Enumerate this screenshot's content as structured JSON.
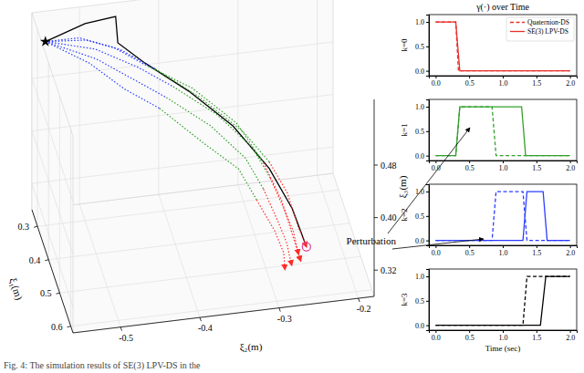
{
  "chart_data": [
    {
      "type": "line3d",
      "xlabel": "ξ₁(m)",
      "ylabel": "ξ₂(m)",
      "zlabel": "ξ₃(m)",
      "xlim": [
        0.25,
        0.62
      ],
      "ylim": [
        -0.56,
        -0.18
      ],
      "zlim": [
        0.28,
        0.58
      ],
      "xticks": [
        0.3,
        0.4,
        0.5,
        0.6
      ],
      "yticks": [
        -0.5,
        -0.4,
        -0.3,
        -0.2
      ],
      "zticks": [
        0.32,
        {
          "value": 0.4,
          "label": "0.40"
        },
        0.48
      ],
      "grid": true,
      "series": [
        {
          "color": "#000000",
          "line_style": "solid",
          "x": [
            0.3,
            0.3,
            0.29,
            0.31,
            0.34,
            0.38,
            0.42,
            0.46,
            0.49,
            0.51
          ],
          "y": [
            -0.55,
            -0.5,
            -0.46,
            -0.46,
            -0.43,
            -0.38,
            -0.33,
            -0.29,
            -0.265,
            -0.25
          ],
          "z": [
            0.56,
            0.58,
            0.58,
            0.55,
            0.53,
            0.5,
            0.46,
            0.41,
            0.36,
            0.31
          ]
        },
        {
          "color": "#2b3cff",
          "line_style": "dotted",
          "x": [
            0.3,
            0.32,
            0.35,
            0.38
          ],
          "y": [
            -0.55,
            -0.49,
            -0.44,
            -0.4
          ],
          "z": [
            0.56,
            0.55,
            0.53,
            0.51
          ]
        },
        {
          "color": "#33a02c",
          "line_style": "dotted",
          "x": [
            0.38,
            0.42,
            0.45,
            0.47
          ],
          "y": [
            -0.4,
            -0.35,
            -0.31,
            -0.29
          ],
          "z": [
            0.51,
            0.48,
            0.44,
            0.4
          ]
        },
        {
          "color": "#ff2a2a",
          "line_style": "dotted",
          "marker": "arrow",
          "x": [
            0.47,
            0.49,
            0.5,
            0.51
          ],
          "y": [
            -0.29,
            -0.275,
            -0.265,
            -0.26
          ],
          "z": [
            0.4,
            0.36,
            0.33,
            0.3
          ]
        },
        {
          "color": "#2b3cff",
          "line_style": "dotted",
          "x": [
            0.3,
            0.33,
            0.36,
            0.39
          ],
          "y": [
            -0.55,
            -0.49,
            -0.45,
            -0.41
          ],
          "z": [
            0.56,
            0.54,
            0.52,
            0.5
          ]
        },
        {
          "color": "#33a02c",
          "line_style": "dotted",
          "x": [
            0.39,
            0.43,
            0.46,
            0.48
          ],
          "y": [
            -0.41,
            -0.36,
            -0.32,
            -0.3
          ],
          "z": [
            0.5,
            0.47,
            0.43,
            0.39
          ]
        },
        {
          "color": "#ff2a2a",
          "line_style": "dotted",
          "marker": "arrow",
          "x": [
            0.48,
            0.5,
            0.51,
            0.52
          ],
          "y": [
            -0.3,
            -0.285,
            -0.275,
            -0.27
          ],
          "z": [
            0.39,
            0.35,
            0.32,
            0.29
          ]
        },
        {
          "color": "#2b3cff",
          "line_style": "dotted",
          "x": [
            0.3,
            0.31,
            0.33,
            0.36
          ],
          "y": [
            -0.55,
            -0.5,
            -0.46,
            -0.42
          ],
          "z": [
            0.56,
            0.56,
            0.55,
            0.53
          ]
        },
        {
          "color": "#33a02c",
          "line_style": "dotted",
          "x": [
            0.36,
            0.4,
            0.44,
            0.46
          ],
          "y": [
            -0.42,
            -0.37,
            -0.32,
            -0.29
          ],
          "z": [
            0.53,
            0.5,
            0.46,
            0.42
          ]
        },
        {
          "color": "#ff2a2a",
          "line_style": "dotted",
          "marker": "arrow",
          "x": [
            0.46,
            0.48,
            0.5,
            0.51
          ],
          "y": [
            -0.29,
            -0.27,
            -0.26,
            -0.25
          ],
          "z": [
            0.42,
            0.38,
            0.34,
            0.31
          ]
        },
        {
          "color": "#2b3cff",
          "line_style": "dotted",
          "x": [
            0.3,
            0.34,
            0.37,
            0.4
          ],
          "y": [
            -0.55,
            -0.5,
            -0.46,
            -0.42
          ],
          "z": [
            0.56,
            0.54,
            0.51,
            0.49
          ]
        },
        {
          "color": "#33a02c",
          "line_style": "dotted",
          "x": [
            0.4,
            0.44,
            0.47,
            0.49
          ],
          "y": [
            -0.42,
            -0.37,
            -0.33,
            -0.31
          ],
          "z": [
            0.49,
            0.45,
            0.42,
            0.38
          ]
        },
        {
          "color": "#ff2a2a",
          "line_style": "dotted",
          "marker": "arrow",
          "x": [
            0.49,
            0.51,
            0.52,
            0.53
          ],
          "y": [
            -0.31,
            -0.29,
            -0.28,
            -0.28
          ],
          "z": [
            0.38,
            0.34,
            0.31,
            0.29
          ]
        },
        {
          "color": "#2b3cff",
          "line_style": "dotted",
          "x": [
            0.3,
            0.32,
            0.34,
            0.37
          ],
          "y": [
            -0.55,
            -0.51,
            -0.47,
            -0.43
          ],
          "z": [
            0.56,
            0.57,
            0.56,
            0.54
          ]
        },
        {
          "color": "#33a02c",
          "line_style": "dotted",
          "x": [
            0.37,
            0.41,
            0.45,
            0.48
          ],
          "y": [
            -0.43,
            -0.38,
            -0.33,
            -0.3
          ],
          "z": [
            0.54,
            0.52,
            0.48,
            0.43
          ]
        },
        {
          "color": "#ff2a2a",
          "line_style": "dotted",
          "marker": "arrow",
          "x": [
            0.48,
            0.5,
            0.52,
            0.53
          ],
          "y": [
            -0.3,
            -0.28,
            -0.27,
            -0.26
          ],
          "z": [
            0.43,
            0.38,
            0.34,
            0.3
          ]
        },
        {
          "color": "#000000",
          "marker": "star",
          "x": [
            0.3
          ],
          "y": [
            -0.55
          ],
          "z": [
            0.56
          ]
        },
        {
          "color": "#e0409f",
          "marker": "circle",
          "x": [
            0.51
          ],
          "y": [
            -0.25
          ],
          "z": [
            0.31
          ]
        }
      ]
    },
    {
      "type": "line",
      "title": "γ(·) over Time",
      "ylabel": "k=0",
      "legend": "upper right",
      "xlim": [
        -0.1,
        2.1
      ],
      "ylim": [
        -0.1,
        1.15
      ],
      "xticks": [
        {
          "value": 0,
          "label": "0.0"
        },
        {
          "value": 0.5,
          "label": "0.5"
        },
        {
          "value": 1,
          "label": "1.0"
        },
        {
          "value": 1.5,
          "label": "1.5"
        },
        {
          "value": 2,
          "label": "2.0"
        }
      ],
      "yticks": [
        {
          "value": 0,
          "label": "0.0"
        },
        {
          "value": 0.5,
          "label": "0.5"
        },
        {
          "value": 1,
          "label": "1.0"
        }
      ],
      "series": [
        {
          "name": "Quaternion-DS",
          "color": "#e8302a",
          "line_style": "dashed",
          "x": [
            0,
            0.3,
            0.34,
            2.0
          ],
          "values": [
            1,
            1,
            0,
            0
          ]
        },
        {
          "name": "SE(3) LPV-DS",
          "color": "#e8302a",
          "line_style": "solid",
          "x": [
            0,
            0.3,
            0.36,
            2.0
          ],
          "values": [
            1,
            1,
            0,
            0
          ]
        }
      ]
    },
    {
      "type": "line",
      "ylabel": "k=1",
      "annotations": [
        "Perturbation"
      ],
      "xlim": [
        -0.1,
        2.1
      ],
      "ylim": [
        -0.1,
        1.15
      ],
      "xticks": [
        {
          "value": 0,
          "label": "0.0"
        },
        {
          "value": 0.5,
          "label": "0.5"
        },
        {
          "value": 1,
          "label": "1.0"
        },
        {
          "value": 1.5,
          "label": "1.5"
        },
        {
          "value": 2,
          "label": "2.0"
        }
      ],
      "yticks": [
        {
          "value": 0,
          "label": "0.0"
        },
        {
          "value": 0.5,
          "label": "0.5"
        },
        {
          "value": 1,
          "label": "1.0"
        }
      ],
      "series": [
        {
          "color": "#33a02c",
          "line_style": "dashed",
          "x": [
            0,
            0.3,
            0.36,
            0.84,
            0.9,
            2.0
          ],
          "values": [
            0,
            0,
            1,
            1,
            0,
            0
          ]
        },
        {
          "color": "#33a02c",
          "line_style": "solid",
          "x": [
            0,
            0.3,
            0.36,
            1.28,
            1.34,
            2.0
          ],
          "values": [
            0,
            0,
            1,
            1,
            0,
            0
          ]
        }
      ]
    },
    {
      "type": "line",
      "ylabel": "k=2",
      "xlim": [
        -0.1,
        2.1
      ],
      "ylim": [
        -0.1,
        1.15
      ],
      "xticks": [
        {
          "value": 0,
          "label": "0.0"
        },
        {
          "value": 0.5,
          "label": "0.5"
        },
        {
          "value": 1,
          "label": "1.0"
        },
        {
          "value": 1.5,
          "label": "1.5"
        },
        {
          "value": 2,
          "label": "2.0"
        }
      ],
      "yticks": [
        {
          "value": 0,
          "label": "0.0"
        },
        {
          "value": 0.5,
          "label": "0.5"
        },
        {
          "value": 1,
          "label": "1.0"
        }
      ],
      "series": [
        {
          "color": "#2b3cff",
          "line_style": "dashed",
          "x": [
            0,
            0.84,
            0.9,
            1.3,
            1.36,
            2.0
          ],
          "values": [
            0,
            0,
            1,
            1,
            0,
            0
          ]
        },
        {
          "color": "#2b3cff",
          "line_style": "solid",
          "x": [
            0,
            1.3,
            1.36,
            1.6,
            1.66,
            2.0
          ],
          "values": [
            0,
            0,
            1,
            1,
            0,
            0
          ]
        }
      ]
    },
    {
      "type": "line",
      "ylabel": "k=3",
      "xlabel": "Time (sec)",
      "xlim": [
        -0.1,
        2.1
      ],
      "ylim": [
        -0.1,
        1.15
      ],
      "xticks": [
        {
          "value": 0,
          "label": "0.0"
        },
        {
          "value": 0.5,
          "label": "0.5"
        },
        {
          "value": 1,
          "label": "1.0"
        },
        {
          "value": 1.5,
          "label": "1.5"
        },
        {
          "value": 2,
          "label": "2.0"
        }
      ],
      "yticks": [
        {
          "value": 0,
          "label": "0.0"
        },
        {
          "value": 0.5,
          "label": "0.5"
        },
        {
          "value": 1,
          "label": "1.0"
        }
      ],
      "series": [
        {
          "color": "#000000",
          "line_style": "dashed",
          "x": [
            0,
            1.3,
            1.36,
            2.0
          ],
          "values": [
            0,
            0,
            1,
            1
          ]
        },
        {
          "color": "#000000",
          "line_style": "solid",
          "x": [
            0,
            1.56,
            1.64,
            2.0
          ],
          "values": [
            0,
            0,
            1,
            1
          ]
        }
      ]
    }
  ],
  "caption": "Fig. 4: The simulation results of SE(3) LPV-DS in the"
}
